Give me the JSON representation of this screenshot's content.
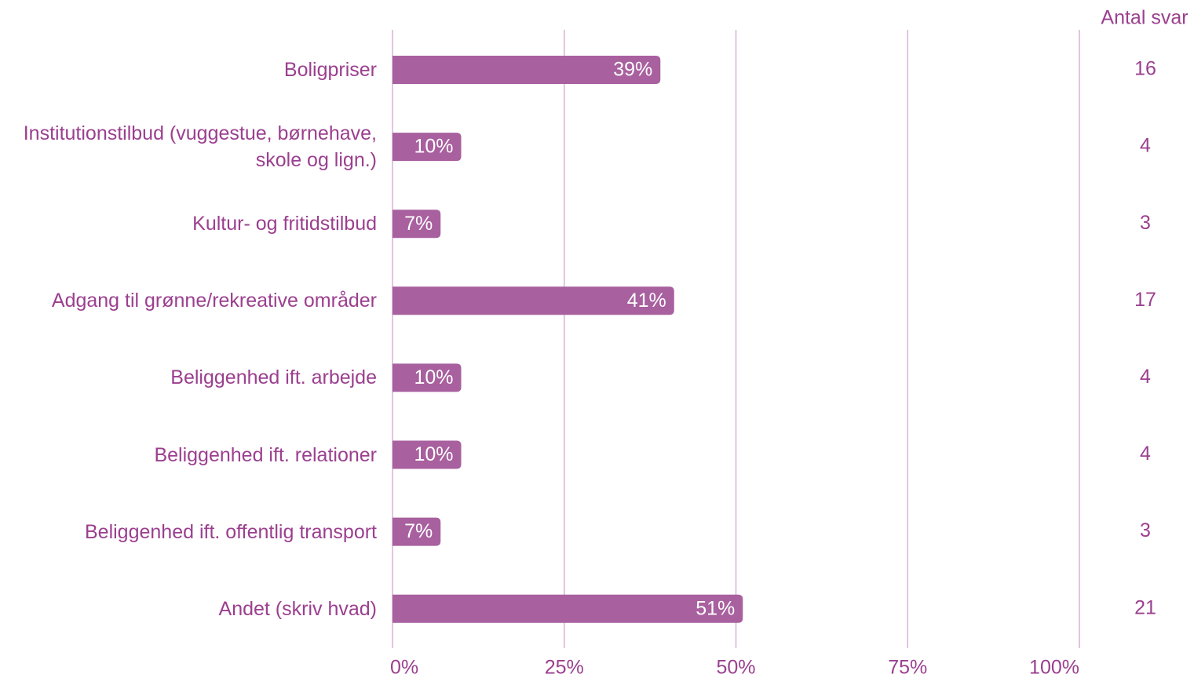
{
  "chart_data": {
    "type": "bar",
    "orientation": "horizontal",
    "categories": [
      "Boligpriser",
      "Institutionstilbud (vuggestue, børnehave, skole og lign.)",
      "Kultur- og fritidstilbud",
      "Adgang til grønne/rekreative områder",
      "Beliggenhed ift. arbejde",
      "Beliggenhed ift. relationer",
      "Beliggenhed ift. offentlig transport",
      "Andet (skriv hvad)"
    ],
    "values": [
      39,
      10,
      7,
      41,
      10,
      10,
      7,
      51
    ],
    "value_labels": [
      "39%",
      "10%",
      "7%",
      "41%",
      "10%",
      "10%",
      "7%",
      "51%"
    ],
    "color": "#a8609f",
    "xlim": [
      0,
      100
    ],
    "xticks": [
      {
        "value": 0,
        "label": "0%"
      },
      {
        "value": 25,
        "label": "25%"
      },
      {
        "value": 50,
        "label": "50%"
      },
      {
        "value": 75,
        "label": "75%"
      },
      {
        "value": 100,
        "label": "100%"
      }
    ],
    "grid": true,
    "count_header": "Antal svar",
    "counts": [
      16,
      4,
      3,
      17,
      4,
      4,
      3,
      21
    ]
  }
}
